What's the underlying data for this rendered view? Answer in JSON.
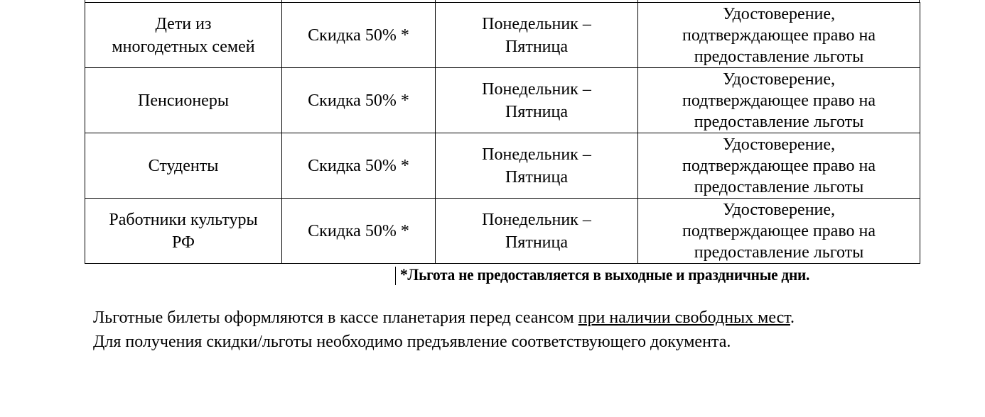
{
  "table": {
    "rows": [
      {
        "category": "Дети из многодетных семей",
        "discount": "Скидка 50% *",
        "days": "Понедельник – Пятница",
        "document": "Удостоверение, подтверждающее право на предоставление льготы"
      },
      {
        "category": "Пенсионеры",
        "discount": "Скидка 50% *",
        "days": "Понедельник – Пятница",
        "document": "Удостоверение, подтверждающее право на предоставление льготы"
      },
      {
        "category": "Студенты",
        "discount": "Скидка 50% *",
        "days": "Понедельник – Пятница",
        "document": "Удостоверение, подтверждающее право на предоставление льготы"
      },
      {
        "category": "Работники культуры РФ",
        "discount": "Скидка 50% *",
        "days": "Понедельник – Пятница",
        "document": "Удостоверение, подтверждающее право на предоставление льготы"
      }
    ]
  },
  "footnote": "*Льгота не предоставляется в выходные и праздничные дни.",
  "paragraph1": {
    "before": "Льготные билеты оформляются в кассе планетария перед сеансом ",
    "underlined": "при наличии свободных мест",
    "after": "."
  },
  "paragraph2": "Для получения скидки/льготы необходимо предъявление соответствующего документа."
}
